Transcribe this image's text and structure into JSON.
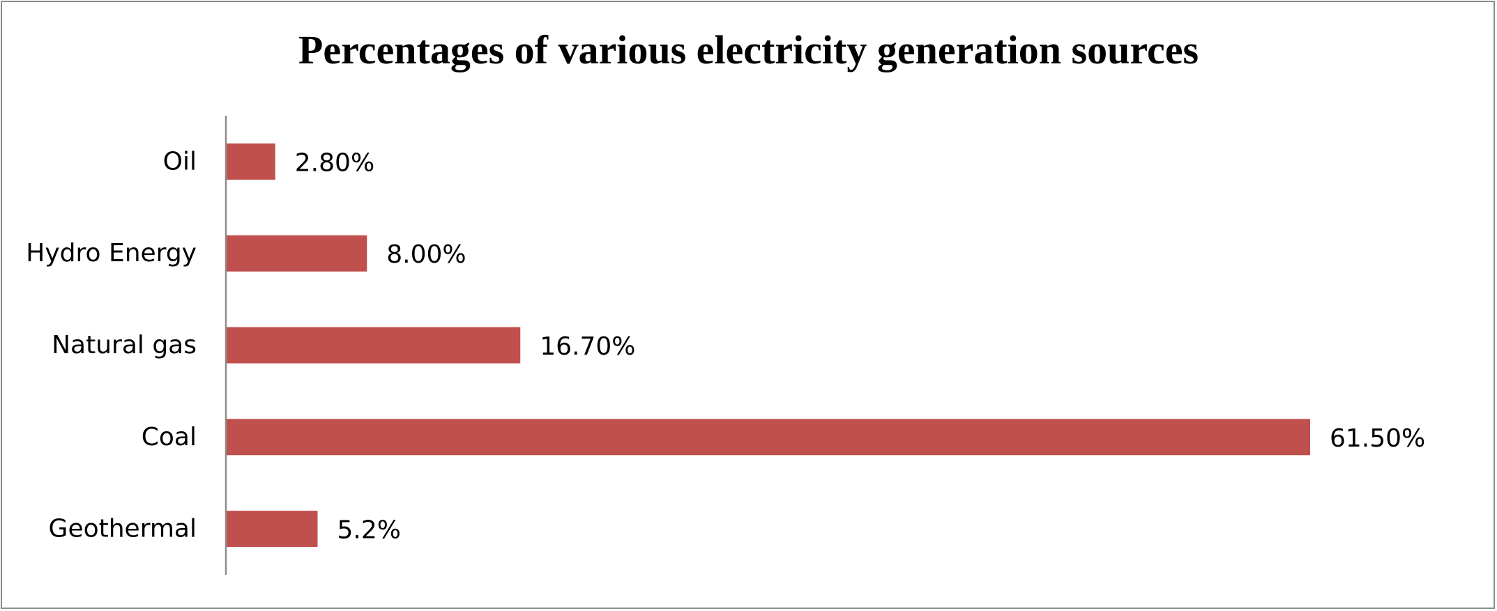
{
  "chart_data": {
    "type": "bar",
    "orientation": "horizontal",
    "title": "Percentages of various electricity generation sources",
    "xlabel": "",
    "ylabel": "",
    "categories": [
      "Oil",
      "Hydro Energy",
      "Natural gas",
      "Coal",
      "Geothermal"
    ],
    "values": [
      2.8,
      8.0,
      16.7,
      61.5,
      5.2
    ],
    "data_labels": [
      "2.80%",
      "8.00%",
      "16.70%",
      "61.50%",
      "5.2%"
    ],
    "xlim": [
      0,
      70
    ],
    "grid": false,
    "legend": "none",
    "bar_color": "#c0504d"
  }
}
